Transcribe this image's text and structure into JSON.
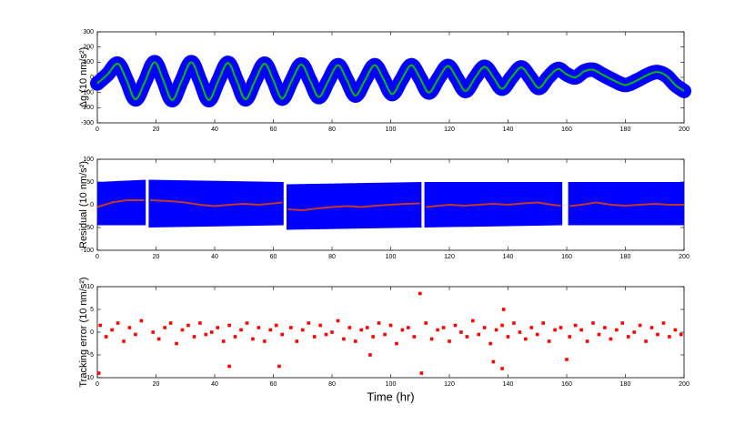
{
  "chart_data": [
    {
      "type": "line",
      "ylabel": "Δg (10 nm/s²)",
      "xlim": [
        0,
        200
      ],
      "xticks": [
        0,
        20,
        40,
        60,
        80,
        100,
        120,
        140,
        160,
        180,
        200
      ],
      "ylim": [
        -300,
        300
      ],
      "yticks": [
        -300,
        -200,
        -100,
        0,
        100,
        200,
        300
      ],
      "smooth": true,
      "band_color": "#0000ff",
      "x": [
        0,
        3.5,
        7,
        10,
        13,
        16.2,
        19.5,
        22.5,
        25.5,
        28.7,
        32,
        35,
        38,
        41.2,
        44.5,
        47.5,
        50.5,
        53.7,
        57,
        60,
        63,
        66.2,
        69.5,
        72.5,
        75.5,
        78.7,
        82,
        85,
        88,
        91.2,
        94.5,
        97.5,
        100.5,
        103.7,
        107,
        110,
        113,
        116.2,
        119.5,
        122.5,
        125.5,
        128.7,
        132,
        135,
        138,
        141.2,
        144.5,
        147.5,
        150.5,
        153.7,
        157,
        160,
        163,
        166,
        169,
        172,
        176,
        180,
        184,
        188,
        191,
        194,
        197,
        200
      ],
      "series": [
        {
          "color": "#00c000",
          "values": [
            -40,
            20,
            90,
            -20,
            -145,
            -30,
            100,
            -20,
            -150,
            -25,
            100,
            -20,
            -150,
            -25,
            95,
            -20,
            -145,
            -25,
            90,
            -20,
            -140,
            -25,
            85,
            -20,
            -130,
            -25,
            80,
            -15,
            -120,
            -20,
            80,
            -10,
            -110,
            -15,
            80,
            -5,
            -100,
            -10,
            75,
            -5,
            -90,
            -5,
            70,
            0,
            -75,
            0,
            65,
            0,
            -70,
            0,
            55,
            20,
            0,
            40,
            50,
            20,
            -20,
            -50,
            -20,
            20,
            35,
            10,
            -50,
            -90
          ]
        }
      ]
    },
    {
      "type": "line",
      "ylabel": "Residual (10 nm/s²)",
      "xlim": [
        0,
        200
      ],
      "xticks": [
        0,
        20,
        40,
        60,
        80,
        100,
        120,
        140,
        160,
        180,
        200
      ],
      "ylim": [
        -100,
        100
      ],
      "yticks": [
        -100,
        -50,
        0,
        50,
        100
      ],
      "smooth": false,
      "band": {
        "color": "#0000ff",
        "x": [
          0,
          16.5,
          null,
          17.5,
          63.5,
          null,
          64.5,
          110.5,
          null,
          111.5,
          158.5,
          null,
          160.5,
          200
        ],
        "lower": [
          -45,
          -45,
          null,
          -50,
          -45,
          null,
          -55,
          -50,
          null,
          -50,
          -45,
          null,
          -45,
          -45
        ],
        "upper": [
          50,
          55,
          null,
          55,
          50,
          null,
          45,
          50,
          null,
          50,
          50,
          null,
          50,
          50
        ]
      },
      "x": [
        0,
        5,
        10,
        16,
        17,
        18,
        25,
        30,
        35,
        40,
        45,
        50,
        55,
        60,
        63,
        64,
        65,
        70,
        75,
        80,
        85,
        90,
        95,
        100,
        105,
        110,
        111,
        112,
        115,
        120,
        125,
        130,
        135,
        140,
        145,
        150,
        155,
        158,
        159,
        161,
        165,
        170,
        175,
        180,
        185,
        190,
        195,
        200
      ],
      "series": [
        {
          "color": "#c0392b",
          "values": [
            -5,
            5,
            10,
            10,
            null,
            10,
            8,
            5,
            0,
            -3,
            0,
            2,
            0,
            3,
            5,
            null,
            -10,
            -12,
            -8,
            -5,
            -3,
            -5,
            -2,
            0,
            2,
            3,
            null,
            -5,
            -3,
            0,
            -2,
            0,
            2,
            0,
            3,
            5,
            0,
            -2,
            null,
            -3,
            0,
            5,
            0,
            -2,
            0,
            2,
            0,
            0
          ]
        }
      ]
    },
    {
      "type": "scatter",
      "ylabel": "Tracking error (10 nm/s²)",
      "xlabel": "Time (hr)",
      "xlim": [
        0,
        200
      ],
      "xticks": [
        0,
        20,
        40,
        60,
        80,
        100,
        120,
        140,
        160,
        180,
        200
      ],
      "ylim": [
        -10,
        10
      ],
      "yticks": [
        -10,
        -5,
        0,
        5,
        10
      ],
      "x": [
        1,
        3,
        5,
        7,
        9,
        11,
        13,
        15,
        19,
        21,
        23,
        25,
        27,
        29,
        31,
        33,
        35,
        37,
        39,
        41,
        43,
        45,
        47,
        49,
        51,
        53,
        55,
        57,
        59,
        61,
        63,
        66,
        68,
        70,
        72,
        74,
        76,
        78,
        80,
        82,
        84,
        86,
        88,
        90,
        92,
        94,
        96,
        98,
        100,
        102,
        104,
        106,
        108,
        112,
        114,
        116,
        118,
        120,
        122,
        124,
        126,
        128,
        130,
        132,
        134,
        136,
        138,
        140,
        142,
        144,
        146,
        148,
        150,
        152,
        154,
        156,
        158,
        161,
        163,
        165,
        167,
        169,
        171,
        173,
        175,
        177,
        179,
        181,
        183,
        185,
        187,
        189,
        191,
        193,
        195,
        197,
        199,
        0.5,
        45,
        62,
        93,
        110,
        110.5,
        135,
        138,
        138.5,
        160
      ],
      "series": [
        {
          "color": "#ff0000",
          "values": [
            1.5,
            -1,
            0.5,
            2,
            -2,
            1,
            -0.5,
            2.5,
            0,
            -1.5,
            1,
            2,
            -2.5,
            0.5,
            1.5,
            -1,
            2,
            -0.5,
            0,
            1,
            -2,
            1.5,
            -1,
            0.5,
            2,
            -1.5,
            1,
            -2,
            0.5,
            1.5,
            -0.5,
            1,
            -2,
            0.5,
            2,
            -1,
            1.5,
            -0.5,
            0,
            2.5,
            -1.5,
            1,
            -2,
            0.5,
            1,
            -1,
            2,
            -0.5,
            1.5,
            -2.5,
            0.5,
            1,
            -1,
            2,
            -1.5,
            0.5,
            1,
            -2,
            1.5,
            0,
            -1,
            2.5,
            -0.5,
            1,
            -2.5,
            0.5,
            1.5,
            -1,
            2,
            0,
            -1.5,
            1,
            -0.5,
            2,
            -2,
            0.5,
            1,
            -1,
            1.5,
            0.5,
            -2,
            2,
            -0.5,
            1,
            -1.5,
            0.5,
            2,
            -1,
            0,
            1.5,
            -2,
            1,
            -0.5,
            2,
            -1,
            0.5,
            -0.5,
            -9,
            -7.5,
            -7.5,
            -5,
            8.5,
            -9,
            -6.5,
            -8,
            5,
            -6
          ]
        }
      ]
    }
  ]
}
